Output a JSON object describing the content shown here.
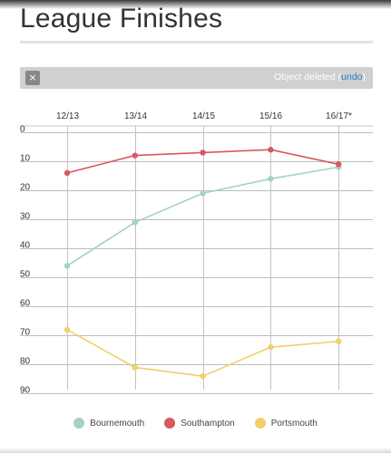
{
  "page": {
    "title": "League Finishes"
  },
  "toast": {
    "close_glyph": "×",
    "message": "Object deleted (",
    "undo_label": "undo",
    "message_end": ")"
  },
  "chart_data": {
    "type": "line",
    "categories": [
      "12/13",
      "13/14",
      "14/15",
      "15/16",
      "16/17*"
    ],
    "y_ticks": [
      0,
      10,
      20,
      30,
      40,
      50,
      60,
      70,
      80,
      90
    ],
    "ylim": [
      0,
      90
    ],
    "y_inverted": true,
    "grid": true,
    "legend_position": "bottom",
    "title": "",
    "xlabel": "",
    "ylabel": "",
    "series": [
      {
        "name": "Bournemouth",
        "color": "#a3d4bd",
        "values": [
          46,
          31,
          21,
          16,
          12
        ]
      },
      {
        "name": "Southampton",
        "color": "#d9585c",
        "values": [
          14,
          8,
          7,
          6,
          11
        ]
      },
      {
        "name": "Portsmouth",
        "color": "#f2cf6a",
        "values": [
          68,
          81,
          84,
          74,
          72
        ]
      }
    ]
  }
}
